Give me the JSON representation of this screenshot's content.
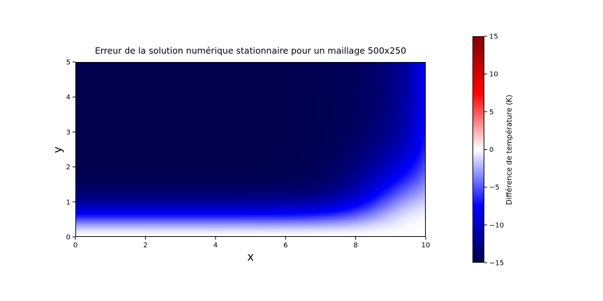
{
  "chart_data": {
    "type": "heatmap",
    "title": "Erreur de la solution numérique stationnaire pour un maillage 500x250",
    "xlabel": "x",
    "ylabel": "y",
    "xlim": [
      0,
      10
    ],
    "ylim": [
      0,
      5
    ],
    "xticks": [
      "0",
      "2",
      "4",
      "6",
      "8",
      "10"
    ],
    "yticks": [
      "0",
      "1",
      "2",
      "3",
      "4",
      "5"
    ],
    "colorbar": {
      "label": "Différence de température (K)",
      "range": [
        -15,
        15
      ],
      "ticks": [
        "−15",
        "−10",
        "−5",
        "0",
        "5",
        "10",
        "15"
      ],
      "colormap": "seismic",
      "colors": [
        "#00004c",
        "#0000ff",
        "#ffffff",
        "#ff0000",
        "#800000"
      ]
    },
    "field_description_points": [
      {
        "x": 0,
        "y": 0,
        "value": 0
      },
      {
        "x": 5,
        "y": 0.5,
        "value": -7
      },
      {
        "x": 5,
        "y": 1,
        "value": -10
      },
      {
        "x": 3,
        "y": 3,
        "value": -15
      },
      {
        "x": 9.9,
        "y": 4.5,
        "value": -10
      },
      {
        "x": 10,
        "y": 0,
        "value": 0
      }
    ]
  }
}
